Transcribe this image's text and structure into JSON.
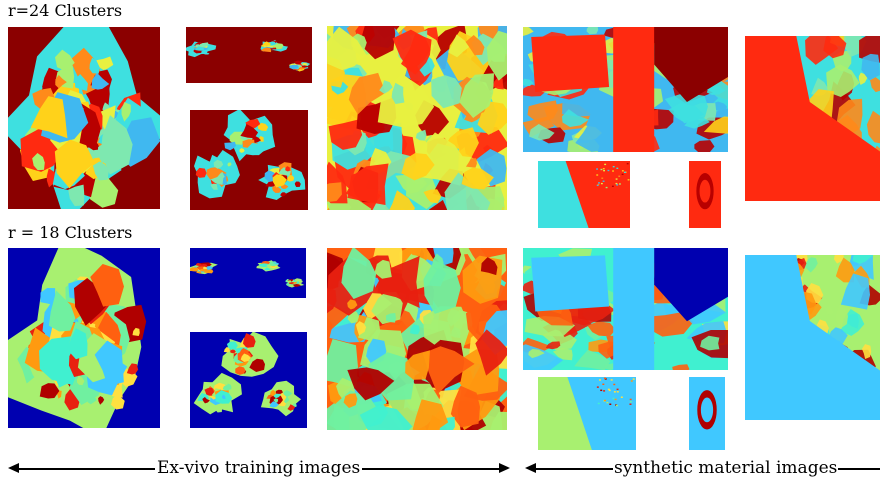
{
  "rows": {
    "top_label": "r=24 Clusters",
    "bottom_label": "r = 18 Clusters"
  },
  "captions": {
    "exvivo": "Ex-vivo training images",
    "synthetic": "synthetic material images"
  },
  "palettes": {
    "r24": {
      "background": "#8b0000",
      "colors": [
        "#3ee0e0",
        "#40b8f0",
        "#e8f040",
        "#ffd21a",
        "#a8f070",
        "#7ee8b0",
        "#ff8a1a",
        "#b80000",
        "#ff2a10"
      ]
    },
    "r18": {
      "background": "#0000b0",
      "colors": [
        "#a8f070",
        "#40f0d0",
        "#ff6010",
        "#ff9a10",
        "#e82010",
        "#ffe040",
        "#70f0a0",
        "#b00000",
        "#40c8ff"
      ]
    }
  }
}
